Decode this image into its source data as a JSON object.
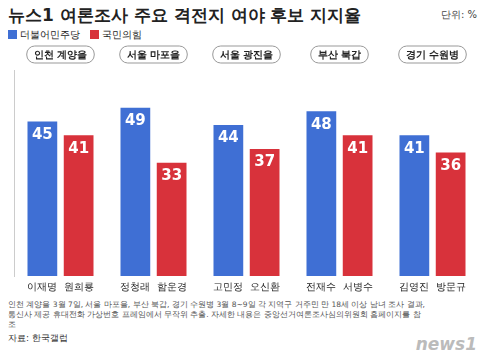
{
  "chart_data": {
    "type": "bar",
    "title": "뉴스1 여론조사 주요 격전지 여야 후보 지지율",
    "unit": "단위: %",
    "categories": [
      "인천 계양을",
      "서울 마포을",
      "서울 광진을",
      "부산 북갑",
      "경기 수원병"
    ],
    "series": [
      {
        "name": "더불어민주당",
        "color": "#3f6fd4",
        "values": [
          45,
          49,
          44,
          48,
          41
        ],
        "candidates": [
          "이재명",
          "정청래",
          "고민정",
          "전재수",
          "김영진"
        ]
      },
      {
        "name": "국민의힘",
        "color": "#d8323b",
        "values": [
          41,
          33,
          37,
          41,
          36
        ],
        "candidates": [
          "원희룡",
          "함운경",
          "오신환",
          "서병수",
          "방문규"
        ]
      }
    ],
    "ylim": [
      0,
      60
    ],
    "data_labels": true,
    "tick_labels": "x",
    "grid": false,
    "legend": "top left",
    "notes": [
      "인천 계양을 3월 7일, 서울 마포을, 부산 북갑, 경기 수원병 3월 8~9일 각 지역구 거주민 만 18세 이상 남녀 조사 결과,",
      "통신사 제공 휴대전화 가상번호 프레임에서 무작위 추출. 자세한 내용은 중앙선거여론조사심의위원회 홈페이지를 참조"
    ],
    "source": "자료: 한국갤럽",
    "logo": "news1"
  }
}
